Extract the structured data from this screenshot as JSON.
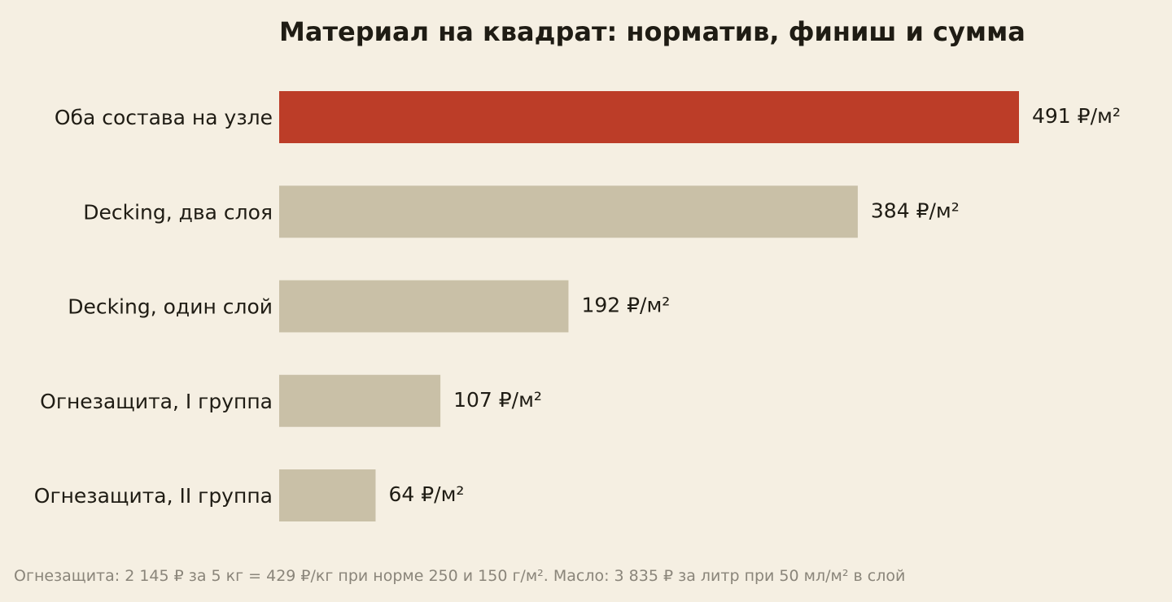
{
  "chart_data": {
    "type": "bar",
    "orientation": "horizontal",
    "title": "Материал на квадрат: норматив, финиш и сумма",
    "categories": [
      "Оба состава на узле",
      "Decking, два слоя",
      "Decking, один слой",
      "Огнезащита, I группа",
      "Огнезащита, II группа"
    ],
    "values": [
      491,
      384,
      192,
      107,
      64
    ],
    "value_labels": [
      "491 ₽/м²",
      "384 ₽/м²",
      "192 ₽/м²",
      "107 ₽/м²",
      "64 ₽/м²"
    ],
    "unit": "₽/м²",
    "xlim": [
      0,
      491
    ],
    "highlight_index": 0,
    "colors": {
      "highlight": "#bc3d28",
      "default": "#c9c0a7",
      "background": "#f5efe2",
      "text": "#1f1c14",
      "footnote": "#8a857a"
    },
    "grid": false,
    "legend": "none",
    "xlabel": "",
    "ylabel": ""
  },
  "footnote": "Огнезащита: 2 145 ₽ за 5 кг = 429 ₽/кг при норме 250 и 150 г/м². Масло: 3 835 ₽ за литр при 50 мл/м² в слой"
}
